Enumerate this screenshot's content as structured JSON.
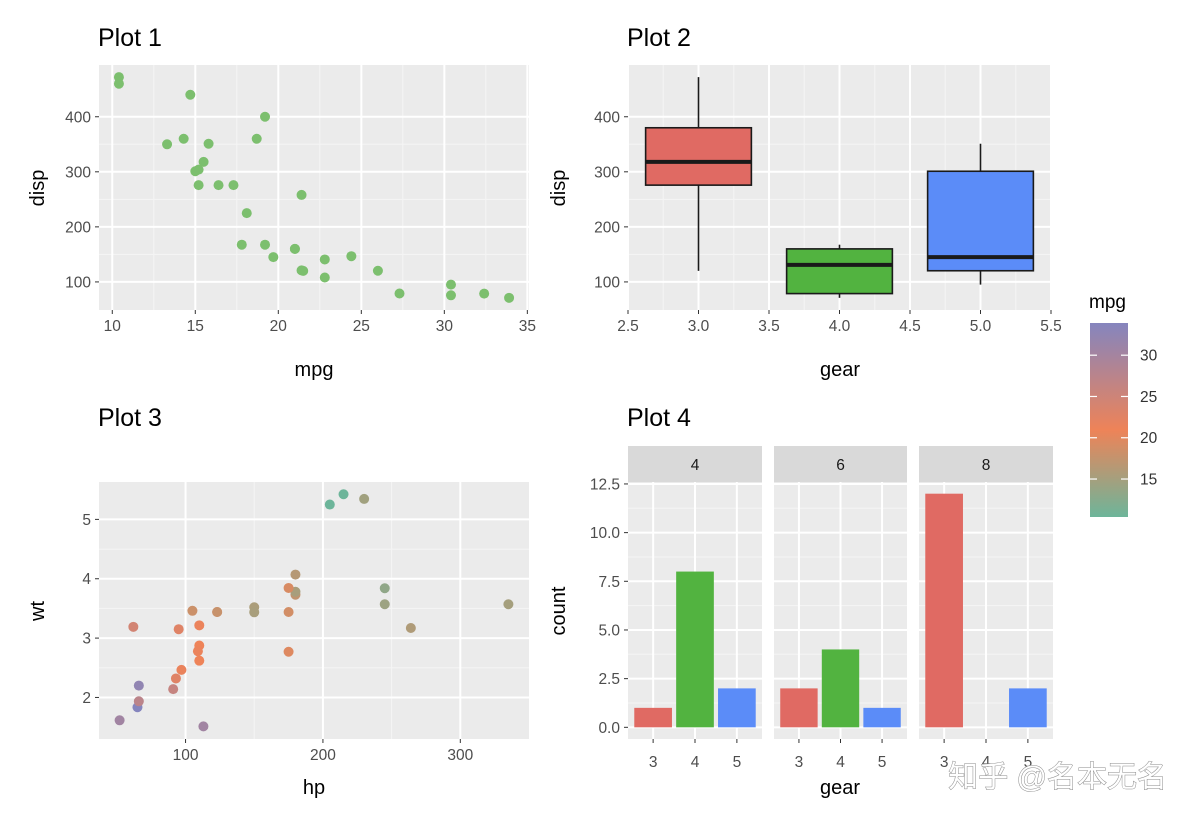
{
  "colors": {
    "panel_bg": "#EBEBEB",
    "grid_major": "#FFFFFF",
    "strip_bg": "#D9D9D9",
    "point_green": "#7CBF6E",
    "gear3": "#E06A63",
    "gear4": "#52B340",
    "gear5": "#5B8CF8",
    "outline": "#1A1A1A",
    "mpg_low": "#6DB59A",
    "mpg_mid": "#EE8358",
    "mpg_high": "#8585BE"
  },
  "watermark": "知乎 @名本无名",
  "legend": {
    "title": "mpg",
    "ticks": [
      15,
      20,
      25,
      30
    ],
    "range": [
      10.4,
      33.9
    ]
  },
  "chart_data": [
    {
      "id": "plot1",
      "type": "scatter",
      "title": "Plot 1",
      "xlabel": "mpg",
      "ylabel": "disp",
      "xlim": [
        9.2,
        35.1
      ],
      "ylim": [
        49,
        494
      ],
      "xticks": [
        10,
        15,
        20,
        25,
        30,
        35
      ],
      "yticks": [
        100,
        200,
        300,
        400
      ],
      "points": [
        [
          21.0,
          160
        ],
        [
          21.0,
          160
        ],
        [
          22.8,
          108
        ],
        [
          21.4,
          258
        ],
        [
          18.7,
          360
        ],
        [
          18.1,
          225
        ],
        [
          14.3,
          360
        ],
        [
          24.4,
          146.7
        ],
        [
          22.8,
          140.8
        ],
        [
          19.2,
          167.6
        ],
        [
          17.8,
          167.6
        ],
        [
          16.4,
          275.8
        ],
        [
          17.3,
          275.8
        ],
        [
          15.2,
          275.8
        ],
        [
          10.4,
          472
        ],
        [
          10.4,
          460
        ],
        [
          14.7,
          440
        ],
        [
          32.4,
          78.7
        ],
        [
          30.4,
          75.7
        ],
        [
          33.9,
          71.1
        ],
        [
          21.5,
          120.1
        ],
        [
          15.5,
          318
        ],
        [
          15.2,
          304
        ],
        [
          13.3,
          350
        ],
        [
          19.2,
          400
        ],
        [
          27.3,
          79
        ],
        [
          26.0,
          120.3
        ],
        [
          30.4,
          95.1
        ],
        [
          15.8,
          351
        ],
        [
          19.7,
          145
        ],
        [
          15.0,
          301
        ],
        [
          21.4,
          121
        ]
      ]
    },
    {
      "id": "plot2",
      "type": "box",
      "title": "Plot 2",
      "xlabel": "gear",
      "ylabel": "disp",
      "xlim": [
        2.5,
        5.5
      ],
      "ylim": [
        49,
        494
      ],
      "xticks": [
        "2.5",
        "3.0",
        "3.5",
        "4.0",
        "4.5",
        "5.0",
        "5.5"
      ],
      "yticks": [
        100,
        200,
        300,
        400
      ],
      "boxes": [
        {
          "gear": 3,
          "min": 120.1,
          "q1": 275.8,
          "median": 318,
          "q3": 380,
          "max": 472
        },
        {
          "gear": 4,
          "min": 71.1,
          "q1": 78.8,
          "median": 130.9,
          "q3": 160,
          "max": 167.6
        },
        {
          "gear": 5,
          "min": 95.1,
          "q1": 120.3,
          "median": 145,
          "q3": 301,
          "max": 351
        }
      ]
    },
    {
      "id": "plot3",
      "type": "scatter",
      "title": "Plot 3",
      "xlabel": "hp",
      "ylabel": "wt",
      "color_by": "mpg",
      "xlim": [
        37,
        350
      ],
      "ylim": [
        1.3,
        5.63
      ],
      "xticks": [
        100,
        200,
        300
      ],
      "yticks": [
        2,
        3,
        4,
        5
      ],
      "points": [
        [
          110,
          2.62,
          21.0
        ],
        [
          110,
          2.875,
          21.0
        ],
        [
          93,
          2.32,
          22.8
        ],
        [
          110,
          3.215,
          21.4
        ],
        [
          175,
          3.44,
          18.7
        ],
        [
          105,
          3.46,
          18.1
        ],
        [
          245,
          3.57,
          14.3
        ],
        [
          62,
          3.19,
          24.4
        ],
        [
          95,
          3.15,
          22.8
        ],
        [
          123,
          3.44,
          19.2
        ],
        [
          123,
          3.44,
          17.8
        ],
        [
          180,
          4.07,
          16.4
        ],
        [
          180,
          3.73,
          17.3
        ],
        [
          180,
          3.78,
          15.2
        ],
        [
          205,
          5.25,
          10.4
        ],
        [
          215,
          5.424,
          10.4
        ],
        [
          230,
          5.345,
          14.7
        ],
        [
          66,
          2.2,
          32.4
        ],
        [
          52,
          1.615,
          30.4
        ],
        [
          65,
          1.835,
          33.9
        ],
        [
          97,
          2.465,
          21.5
        ],
        [
          150,
          3.52,
          15.5
        ],
        [
          150,
          3.435,
          15.2
        ],
        [
          245,
          3.84,
          13.3
        ],
        [
          175,
          3.845,
          19.2
        ],
        [
          66,
          1.935,
          27.3
        ],
        [
          91,
          2.14,
          26.0
        ],
        [
          113,
          1.513,
          30.4
        ],
        [
          264,
          3.17,
          15.8
        ],
        [
          175,
          2.77,
          19.7
        ],
        [
          335,
          3.57,
          15.0
        ],
        [
          109,
          2.78,
          21.4
        ]
      ]
    },
    {
      "id": "plot4",
      "type": "bar",
      "title": "Plot 4",
      "xlabel": "gear",
      "ylabel": "count",
      "facet_by": "cyl",
      "ylim": [
        -0.6,
        12.6
      ],
      "yticks": [
        "0.0",
        "2.5",
        "5.0",
        "7.5",
        "10.0",
        "12.5"
      ],
      "categories": [
        "3",
        "4",
        "5"
      ],
      "facets": [
        {
          "label": "4",
          "values": [
            1,
            8,
            2
          ]
        },
        {
          "label": "6",
          "values": [
            2,
            4,
            1
          ]
        },
        {
          "label": "8",
          "values": [
            12,
            0,
            2
          ]
        }
      ]
    }
  ]
}
